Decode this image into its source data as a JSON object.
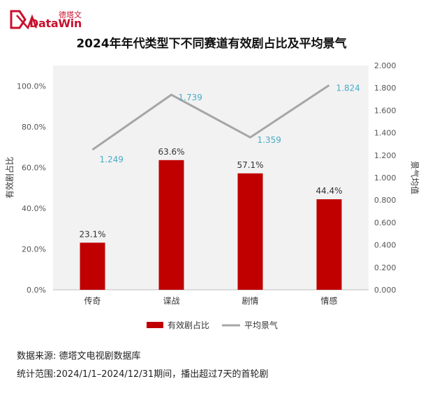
{
  "logo": {
    "cn": "德塔文",
    "en": "DataWin"
  },
  "title": "2024年年代类型下不同赛道有效剧占比及平均景气",
  "footer": {
    "source": "数据来源: 德塔文电视剧数据库",
    "range": "统计范围:2024/1/1–2024/12/31期间，播出超过7天的首轮剧"
  },
  "colors": {
    "bar": "#c00000",
    "line": "#a6a6a6",
    "line_label": "#4bacc6",
    "plot_bg": "#f2f2f2",
    "brand": "#c8102e"
  },
  "chart_data": {
    "type": "bar+line",
    "categories": [
      "传奇",
      "谍战",
      "剧情",
      "情感"
    ],
    "series": [
      {
        "name": "有效剧占比",
        "type": "bar",
        "axis": "left",
        "values": [
          23.1,
          63.6,
          57.1,
          44.4
        ],
        "labels": [
          "23.1%",
          "63.6%",
          "57.1%",
          "44.4%"
        ]
      },
      {
        "name": "平均景气",
        "type": "line",
        "axis": "right",
        "values": [
          1.249,
          1.739,
          1.359,
          1.824
        ],
        "labels": [
          "1.249",
          "1.739",
          "1.359",
          "1.824"
        ]
      }
    ],
    "ylabel": "有效剧占比",
    "ylabel_right": "景气均值",
    "ylim": [
      0,
      110
    ],
    "ylim_right": [
      0,
      2.0
    ],
    "yticks": [
      "0.0%",
      "20.0%",
      "40.0%",
      "60.0%",
      "80.0%",
      "100.0%"
    ],
    "yticks_values": [
      0,
      20,
      40,
      60,
      80,
      100
    ],
    "yticks_right": [
      "0.000",
      "0.200",
      "0.400",
      "0.600",
      "0.800",
      "1.000",
      "1.200",
      "1.400",
      "1.600",
      "1.800",
      "2.000"
    ],
    "yticks_right_values": [
      0,
      0.2,
      0.4,
      0.6,
      0.8,
      1.0,
      1.2,
      1.4,
      1.6,
      1.8,
      2.0
    ],
    "legend_position": "bottom",
    "grid": false
  }
}
